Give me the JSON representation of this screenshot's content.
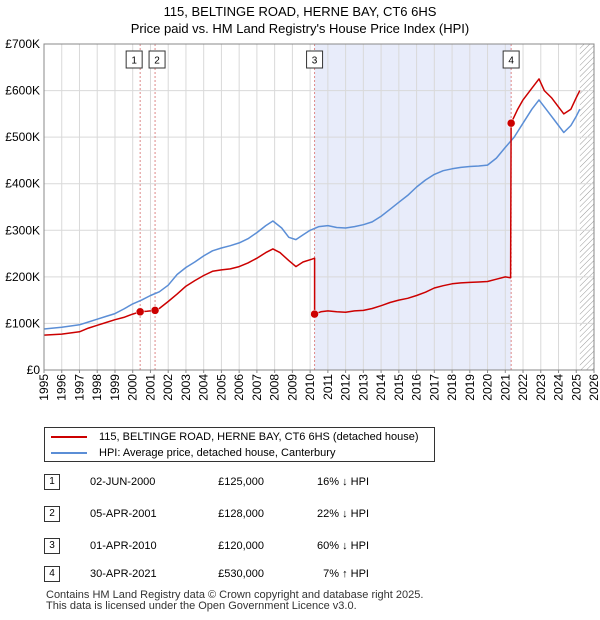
{
  "chart_data": {
    "type": "line",
    "title": "115, BELTINGE ROAD, HERNE BAY, CT6 6HS",
    "subtitle": "Price paid vs. HM Land Registry's House Price Index (HPI)",
    "xlabel": "",
    "ylabel": "",
    "xlim": [
      1995,
      2026
    ],
    "ylim": [
      0,
      700000
    ],
    "x_ticks": [
      1995,
      1996,
      1997,
      1998,
      1999,
      2000,
      2001,
      2002,
      2003,
      2004,
      2005,
      2006,
      2007,
      2008,
      2009,
      2010,
      2011,
      2012,
      2013,
      2014,
      2015,
      2016,
      2017,
      2018,
      2019,
      2020,
      2021,
      2022,
      2023,
      2024,
      2025,
      2026
    ],
    "y_ticks": [
      0,
      100000,
      200000,
      300000,
      400000,
      500000,
      600000,
      700000
    ],
    "y_tick_labels": [
      "£0",
      "£100K",
      "£200K",
      "£300K",
      "£400K",
      "£500K",
      "£600K",
      "£700K"
    ],
    "grid": true,
    "shaded_region": {
      "from": 2010.25,
      "to": 2021.33,
      "color": "#e8ecfa"
    },
    "forecast_hatch_from": 2025.2,
    "series": [
      {
        "name": "115, BELTINGE ROAD, HERNE BAY, CT6 6HS (detached house)",
        "color": "#cc0000",
        "points": [
          [
            1995.0,
            75000
          ],
          [
            1996.0,
            77000
          ],
          [
            1997.0,
            82000
          ],
          [
            1997.5,
            90000
          ],
          [
            1998.0,
            96000
          ],
          [
            1998.5,
            102000
          ],
          [
            1999.0,
            108000
          ],
          [
            1999.5,
            113000
          ],
          [
            2000.0,
            120000
          ],
          [
            2000.42,
            125000
          ],
          [
            2000.8,
            126000
          ],
          [
            2001.0,
            127000
          ],
          [
            2001.26,
            128000
          ],
          [
            2001.5,
            132000
          ],
          [
            2002.0,
            147000
          ],
          [
            2002.5,
            163000
          ],
          [
            2003.0,
            180000
          ],
          [
            2003.5,
            192000
          ],
          [
            2004.0,
            203000
          ],
          [
            2004.5,
            212000
          ],
          [
            2005.0,
            215000
          ],
          [
            2005.5,
            217000
          ],
          [
            2006.0,
            222000
          ],
          [
            2006.5,
            230000
          ],
          [
            2007.0,
            240000
          ],
          [
            2007.5,
            252000
          ],
          [
            2007.9,
            260000
          ],
          [
            2008.3,
            252000
          ],
          [
            2008.8,
            235000
          ],
          [
            2009.2,
            222000
          ],
          [
            2009.6,
            232000
          ],
          [
            2010.1,
            238000
          ],
          [
            2010.25,
            240000
          ],
          [
            2010.25,
            120000
          ],
          [
            2010.6,
            125000
          ],
          [
            2011.0,
            127000
          ],
          [
            2011.5,
            125000
          ],
          [
            2012.0,
            124000
          ],
          [
            2012.5,
            127000
          ],
          [
            2013.0,
            128000
          ],
          [
            2013.5,
            132000
          ],
          [
            2014.0,
            138000
          ],
          [
            2014.5,
            145000
          ],
          [
            2015.0,
            150000
          ],
          [
            2015.5,
            154000
          ],
          [
            2016.0,
            160000
          ],
          [
            2016.5,
            167000
          ],
          [
            2017.0,
            176000
          ],
          [
            2017.5,
            181000
          ],
          [
            2018.0,
            185000
          ],
          [
            2018.5,
            187000
          ],
          [
            2019.0,
            188000
          ],
          [
            2019.5,
            189000
          ],
          [
            2020.0,
            190000
          ],
          [
            2020.5,
            195000
          ],
          [
            2021.0,
            200000
          ],
          [
            2021.3,
            198000
          ],
          [
            2021.33,
            530000
          ],
          [
            2021.7,
            560000
          ],
          [
            2022.0,
            580000
          ],
          [
            2022.5,
            605000
          ],
          [
            2022.9,
            625000
          ],
          [
            2023.2,
            600000
          ],
          [
            2023.6,
            585000
          ],
          [
            2024.0,
            565000
          ],
          [
            2024.3,
            550000
          ],
          [
            2024.7,
            560000
          ],
          [
            2025.0,
            585000
          ],
          [
            2025.2,
            600000
          ]
        ]
      },
      {
        "name": "HPI: Average price, detached house, Canterbury",
        "color": "#5b8ed6",
        "points": [
          [
            1995.0,
            88000
          ],
          [
            1996.0,
            92000
          ],
          [
            1997.0,
            97000
          ],
          [
            1997.5,
            103000
          ],
          [
            1998.0,
            109000
          ],
          [
            1998.5,
            115000
          ],
          [
            1999.0,
            121000
          ],
          [
            1999.5,
            131000
          ],
          [
            2000.0,
            142000
          ],
          [
            2000.5,
            150000
          ],
          [
            2001.0,
            160000
          ],
          [
            2001.5,
            168000
          ],
          [
            2002.0,
            182000
          ],
          [
            2002.5,
            205000
          ],
          [
            2003.0,
            220000
          ],
          [
            2003.5,
            232000
          ],
          [
            2004.0,
            245000
          ],
          [
            2004.5,
            256000
          ],
          [
            2005.0,
            262000
          ],
          [
            2005.5,
            267000
          ],
          [
            2006.0,
            273000
          ],
          [
            2006.5,
            282000
          ],
          [
            2007.0,
            295000
          ],
          [
            2007.5,
            310000
          ],
          [
            2007.9,
            320000
          ],
          [
            2008.4,
            305000
          ],
          [
            2008.8,
            285000
          ],
          [
            2009.2,
            280000
          ],
          [
            2009.6,
            290000
          ],
          [
            2010.0,
            300000
          ],
          [
            2010.5,
            308000
          ],
          [
            2011.0,
            310000
          ],
          [
            2011.5,
            306000
          ],
          [
            2012.0,
            305000
          ],
          [
            2012.5,
            308000
          ],
          [
            2013.0,
            312000
          ],
          [
            2013.5,
            318000
          ],
          [
            2014.0,
            330000
          ],
          [
            2014.5,
            345000
          ],
          [
            2015.0,
            360000
          ],
          [
            2015.5,
            375000
          ],
          [
            2016.0,
            393000
          ],
          [
            2016.5,
            408000
          ],
          [
            2017.0,
            420000
          ],
          [
            2017.5,
            428000
          ],
          [
            2018.0,
            432000
          ],
          [
            2018.5,
            435000
          ],
          [
            2019.0,
            437000
          ],
          [
            2019.5,
            438000
          ],
          [
            2020.0,
            440000
          ],
          [
            2020.5,
            455000
          ],
          [
            2021.0,
            478000
          ],
          [
            2021.5,
            500000
          ],
          [
            2022.0,
            530000
          ],
          [
            2022.5,
            560000
          ],
          [
            2022.9,
            580000
          ],
          [
            2023.3,
            560000
          ],
          [
            2023.7,
            540000
          ],
          [
            2024.0,
            525000
          ],
          [
            2024.3,
            510000
          ],
          [
            2024.7,
            525000
          ],
          [
            2025.0,
            545000
          ],
          [
            2025.2,
            560000
          ]
        ]
      }
    ],
    "sales": [
      {
        "id": "1",
        "x": 2000.42,
        "price": 125000
      },
      {
        "id": "2",
        "x": 2001.26,
        "price": 128000
      },
      {
        "id": "3",
        "x": 2010.25,
        "price": 120000
      },
      {
        "id": "4",
        "x": 2021.33,
        "price": 530000
      }
    ]
  },
  "legend": {
    "property_label": "115, BELTINGE ROAD, HERNE BAY, CT6 6HS (detached house)",
    "hpi_label": "HPI: Average price, detached house, Canterbury",
    "property_color": "#cc0000",
    "hpi_color": "#5b8ed6"
  },
  "transactions": [
    {
      "id": "1",
      "date": "02-JUN-2000",
      "price": "£125,000",
      "hpi": "16% ↓ HPI"
    },
    {
      "id": "2",
      "date": "05-APR-2001",
      "price": "£128,000",
      "hpi": "22% ↓ HPI"
    },
    {
      "id": "3",
      "date": "01-APR-2010",
      "price": "£120,000",
      "hpi": "60% ↓ HPI"
    },
    {
      "id": "4",
      "date": "30-APR-2021",
      "price": "£530,000",
      "hpi": "7% ↑ HPI"
    }
  ],
  "footer": {
    "line1": "Contains HM Land Registry data © Crown copyright and database right 2025.",
    "line2": "This data is licensed under the Open Government Licence v3.0."
  }
}
